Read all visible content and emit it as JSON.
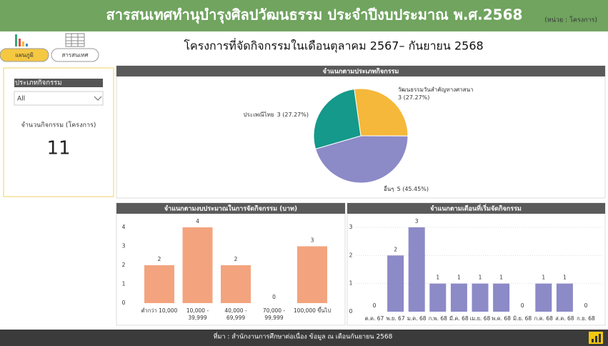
{
  "header": {
    "title": "สารสนเทศทำนุบำรุงศิลปวัฒนธรรม ประจำปีงบประมาณ พ.ศ.2568",
    "unit": "(หน่วย : โครงการ)"
  },
  "tabs": [
    "แผนภูมิ",
    "สารสนเทศ"
  ],
  "subtitle": "โครงการที่จัดกิจกรรมในเดือนตุลาคม 2567– กันยายน 2568",
  "filter": {
    "label": "ประเภทกิจกรรม",
    "selected": "All"
  },
  "kpi": {
    "label": "จำนวนกิจกรรม (โครงการ)",
    "value": 11
  },
  "chart_data": [
    {
      "type": "pie",
      "title": "จำแนกตามประเภทกิจกรรม",
      "categories": [
        "วัฒนธรรมวันสำคัญทางศาสนา",
        "อื่นๆ",
        "ประเพณีไทย"
      ],
      "values": [
        3,
        5,
        3
      ],
      "value_labels": [
        "3 (27.27%)",
        "5 (45.45%)",
        "3 (27.27%)"
      ],
      "colors": [
        "#f5b83a",
        "#8c8ac7",
        "#14998a"
      ]
    },
    {
      "type": "bar",
      "title": "จำแนกตามงบประมาณในการจัดกิจกรรม (บาท)",
      "categories": [
        "ต่ำกว่า 10,000",
        "10,000 - 39,999",
        "40,000 - 69,999",
        "70,000 - 99,999",
        "100,000 ขึ้นไป"
      ],
      "values": [
        2,
        4,
        2,
        0,
        3
      ],
      "color": "#f3a47e",
      "ylim": [
        0,
        4
      ],
      "yticks": [
        0,
        1,
        2,
        3,
        4
      ],
      "grid": false
    },
    {
      "type": "bar",
      "title": "จำแนกตามเดือนที่เริ่มจัดกิจกรรม",
      "categories": [
        "ต.ค. 67",
        "พ.ย. 67",
        "ม.ค. 68",
        "ก.พ. 68",
        "มี.ค. 68",
        "เม.ย. 68",
        "พ.ค. 68",
        "มิ.ย. 68",
        "ก.ค. 68",
        "ส.ค. 68",
        "ก.ย. 68"
      ],
      "values": [
        0,
        2,
        3,
        1,
        1,
        1,
        1,
        0,
        1,
        1,
        0
      ],
      "color": "#8c8ac7",
      "ylim": [
        0,
        3
      ],
      "yticks": [
        0,
        1,
        2,
        3
      ],
      "grid": true
    }
  ],
  "footer": {
    "source": "ที่มา : สำนักงานการศึกษาต่อเนื่อง ข้อมูล ณ เดือนกันยายน 2568"
  }
}
